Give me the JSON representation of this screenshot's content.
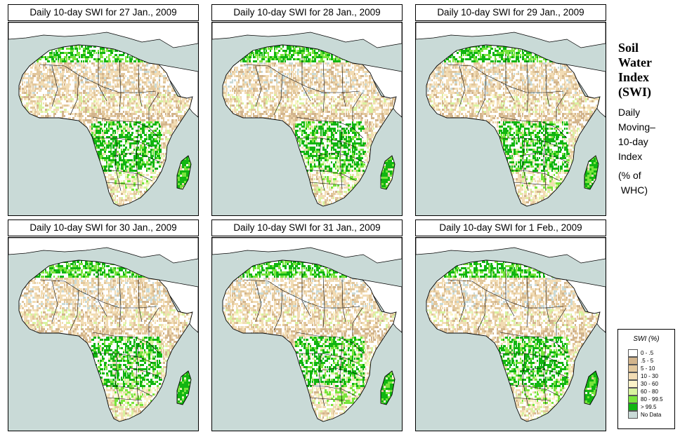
{
  "panels": [
    {
      "title": "Daily 10-day SWI for  27 Jan., 2009"
    },
    {
      "title": "Daily 10-day SWI for  28 Jan., 2009"
    },
    {
      "title": "Daily 10-day SWI for  29 Jan., 2009"
    },
    {
      "title": "Daily 10-day SWI for  30 Jan., 2009"
    },
    {
      "title": "Daily 10-day SWI for  31 Jan., 2009"
    },
    {
      "title": "Daily 10-day SWI for  1 Feb., 2009"
    }
  ],
  "side": {
    "title_lines": [
      "Soil",
      "Water",
      "Index",
      "(SWI)"
    ],
    "desc_lines": [
      "Daily",
      "Moving–",
      "10-day",
      "Index"
    ],
    "unit_lines": [
      "(% of",
      " WHC)"
    ]
  },
  "legend": {
    "title": "SWI (%)",
    "items": [
      {
        "label": "0 - .5",
        "color": "#ffffff"
      },
      {
        "label": ".5 - 5",
        "color": "#d2b48c"
      },
      {
        "label": "5 - 10",
        "color": "#e2c79c"
      },
      {
        "label": "10 - 30",
        "color": "#f2dcb4"
      },
      {
        "label": "30 - 60",
        "color": "#fbf3c8"
      },
      {
        "label": "60 - 80",
        "color": "#d9f2a0"
      },
      {
        "label": "80 - 99.5",
        "color": "#78e43c"
      },
      {
        "label": "> 99.5",
        "color": "#11b511"
      },
      {
        "label": "No Data",
        "color": "#c9dad7"
      }
    ]
  }
}
